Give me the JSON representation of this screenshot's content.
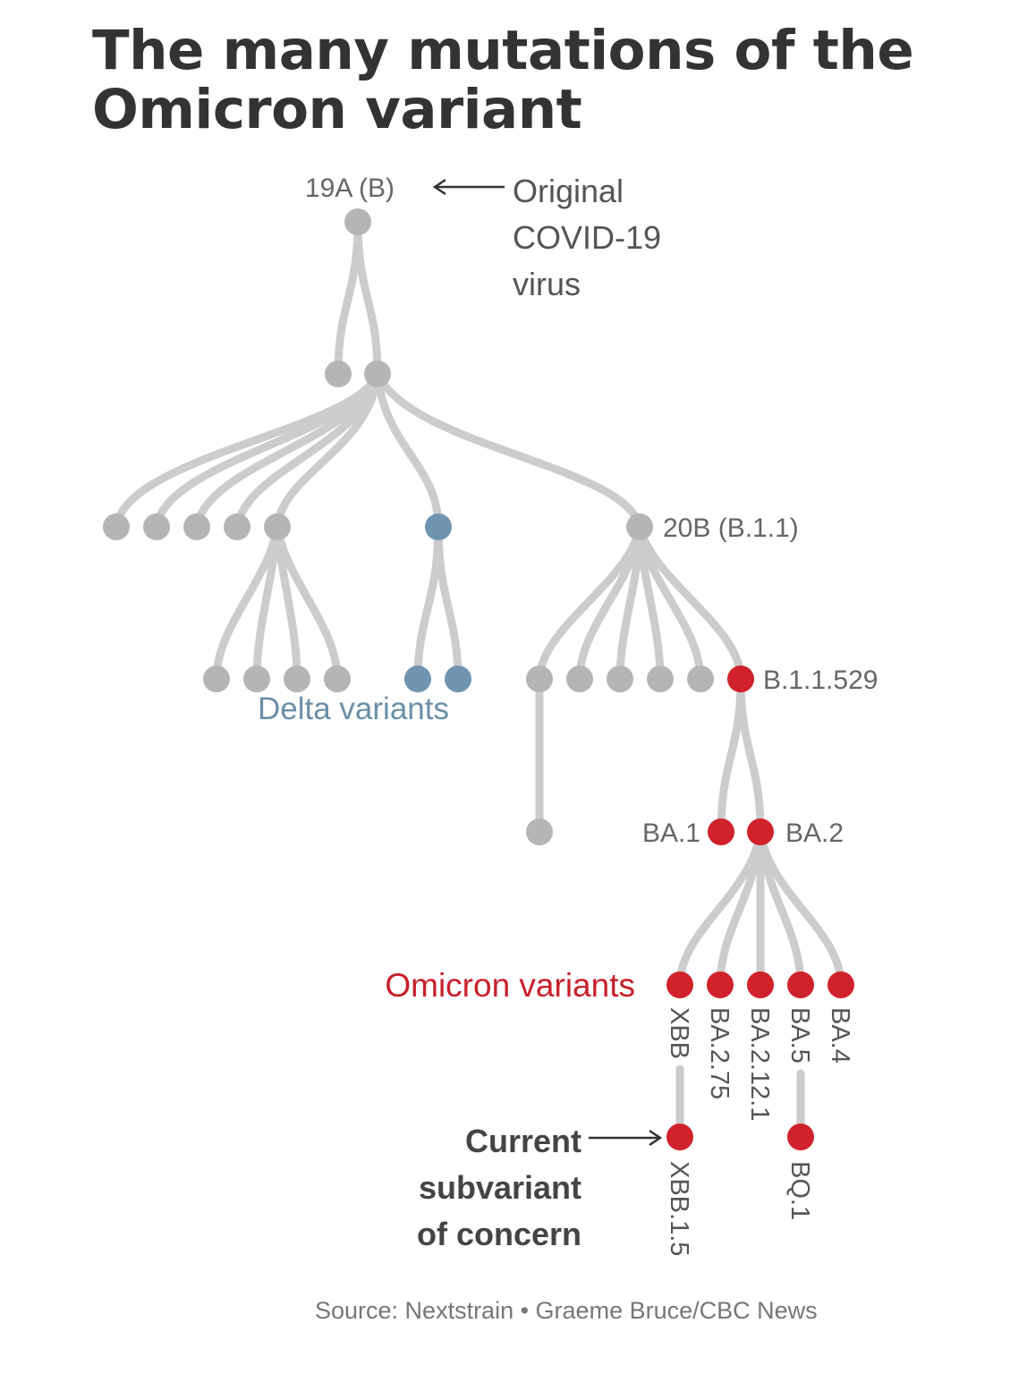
{
  "title": "The many mutations of the Omicron variant",
  "source": "Source: Nextstrain • Graeme Bruce/CBC News",
  "colors": {
    "branch": "#cccccc",
    "grey_node": "#b5b5b5",
    "delta_node": "#6f95b0",
    "omicron_node": "#d0222c",
    "delta_label": "#6b8fa8",
    "omicron_label": "#c8202a"
  },
  "labels": {
    "root": "19A (B)",
    "original": [
      "Original",
      "COVID-19",
      "virus"
    ],
    "b11": "20B (B.1.1)",
    "b11529": "B.1.1.529",
    "delta": "Delta variants",
    "ba1": "BA.1",
    "ba2": "BA.2",
    "omicron": "Omicron variants",
    "xbb": "XBB",
    "ba275": "BA.2.75",
    "ba2121": "BA.2.12.1",
    "ba5": "BA.5",
    "ba4": "BA.4",
    "xbb15": "XBB.1.5",
    "bq1": "BQ.1",
    "concern": [
      "Current",
      "subvariant",
      "of concern"
    ]
  }
}
